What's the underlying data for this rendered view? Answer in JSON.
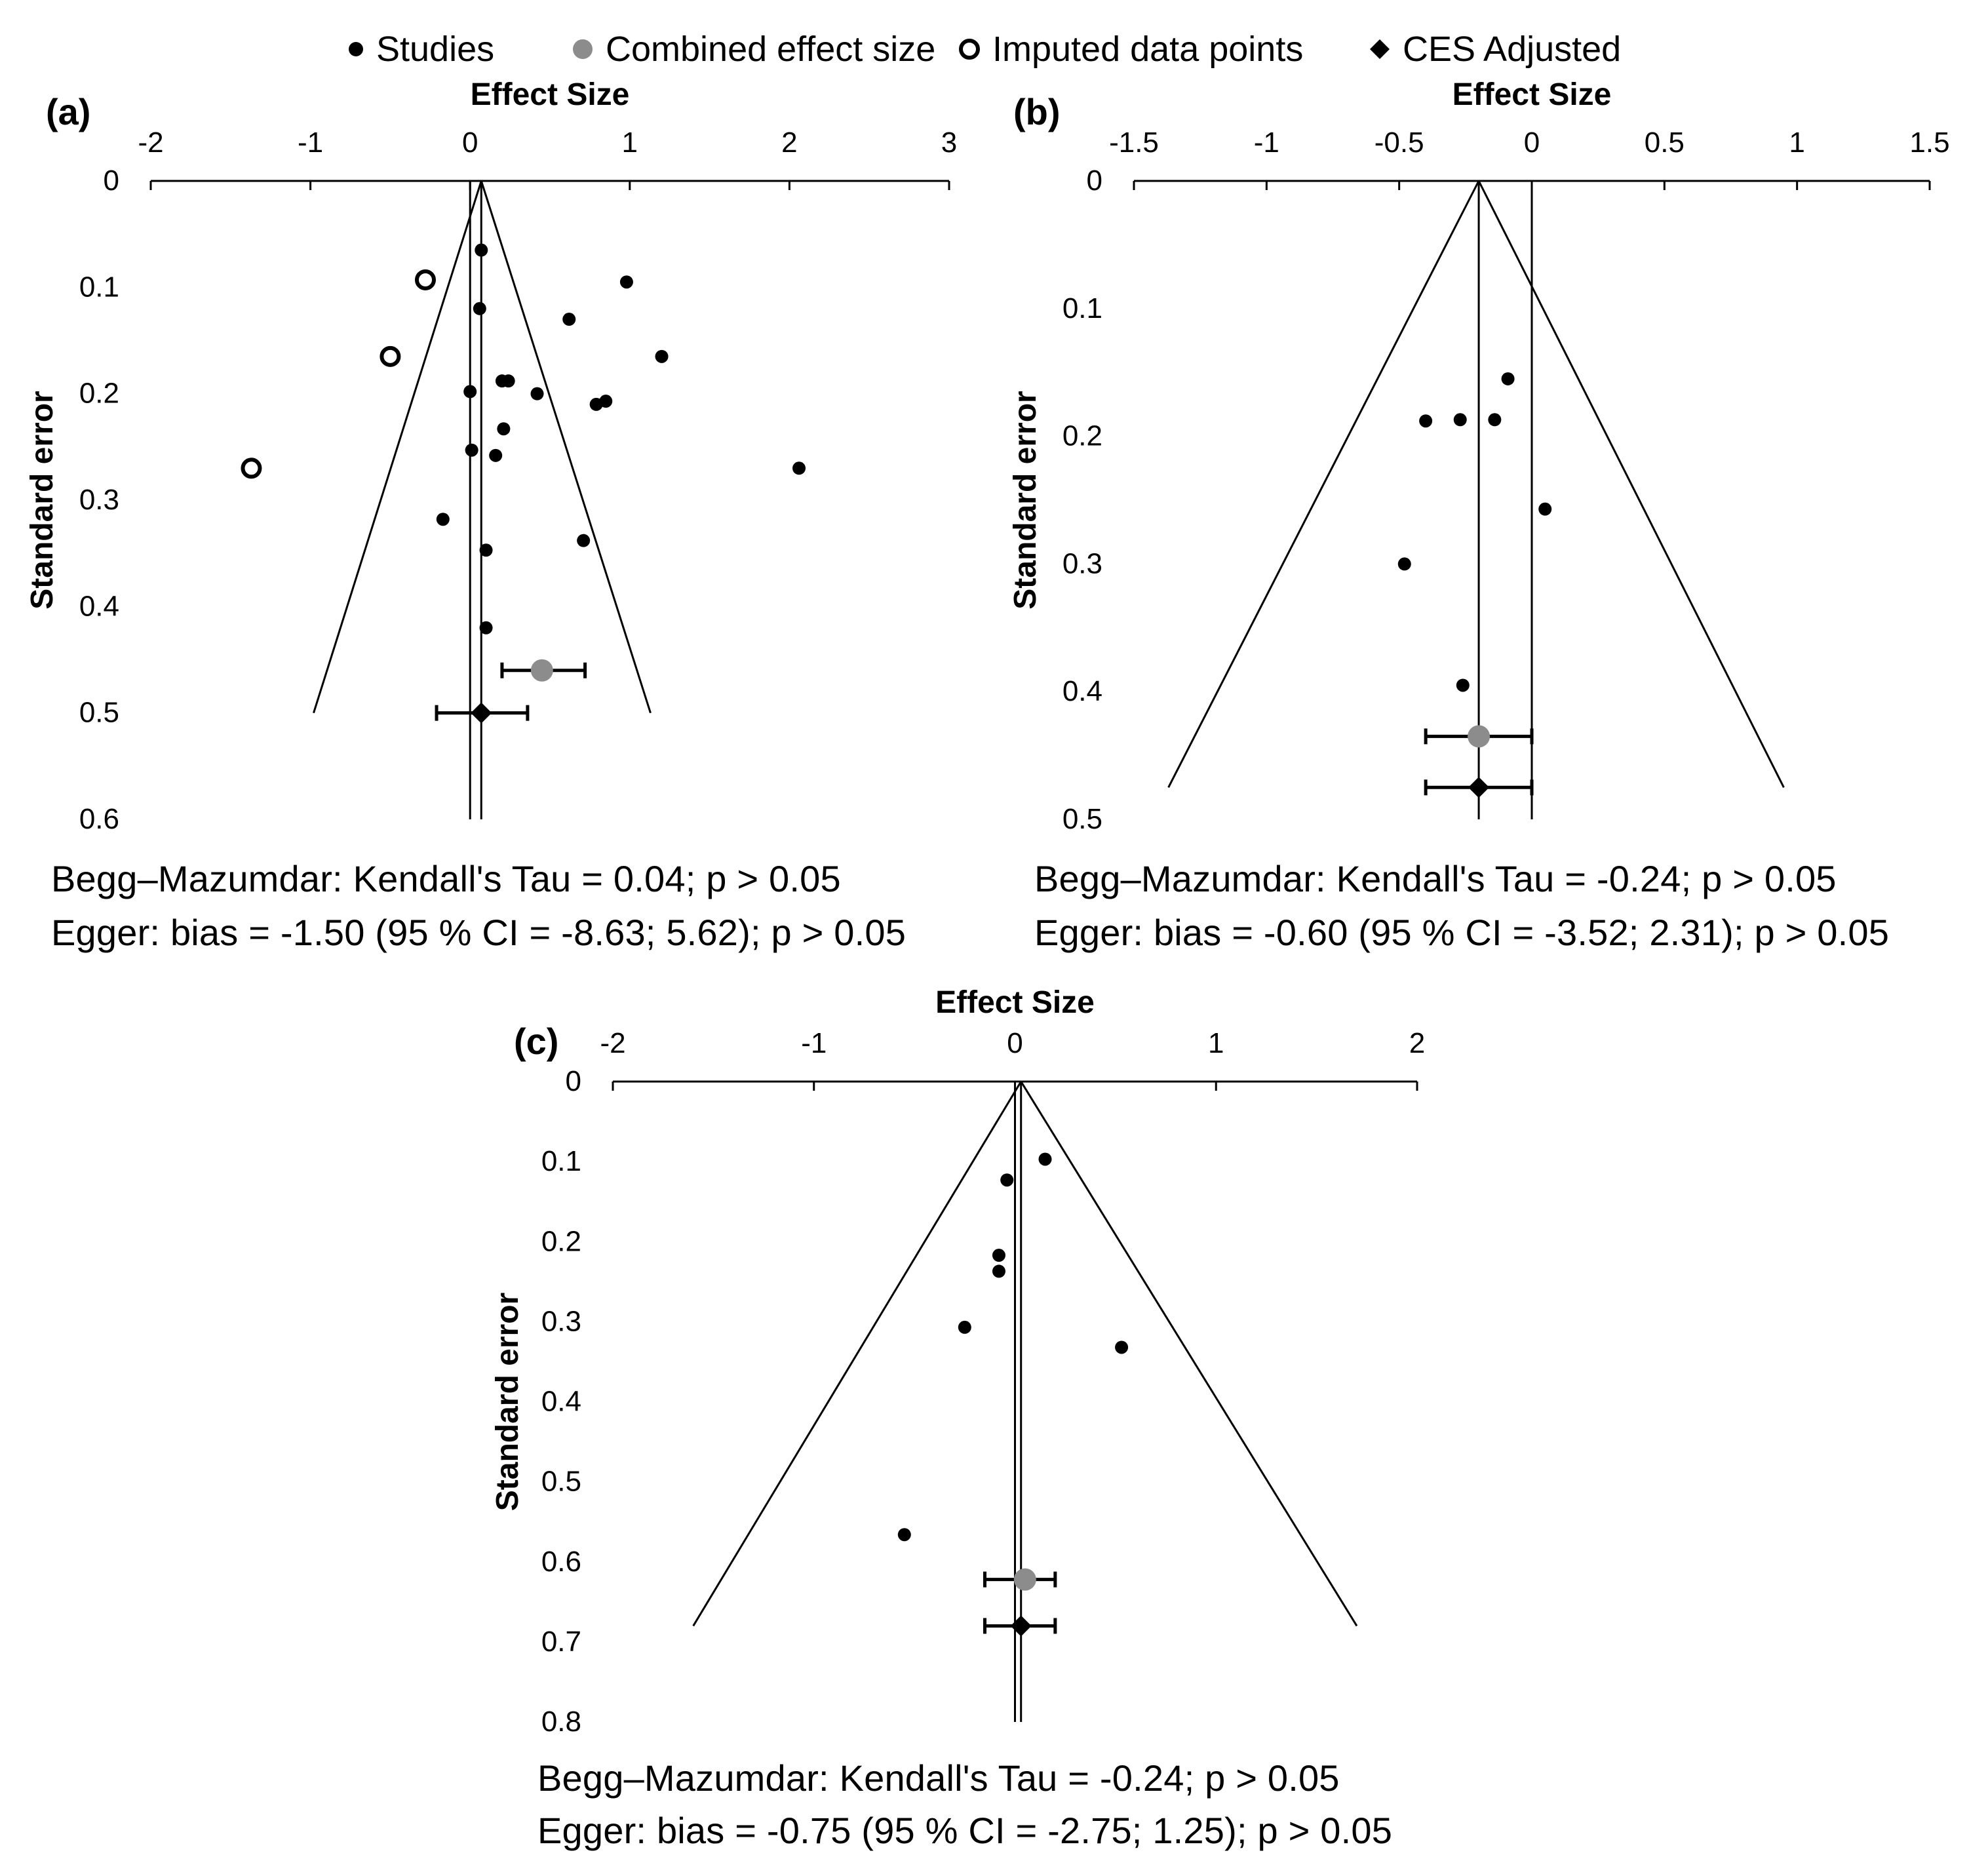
{
  "legend": [
    {
      "label": "Studies",
      "marker": "black-dot"
    },
    {
      "label": "Combined effect size",
      "marker": "grey-dot"
    },
    {
      "label": "Imputed data points",
      "marker": "open-circle"
    },
    {
      "label": "CES Adjusted",
      "marker": "black-diamond"
    }
  ],
  "colors": {
    "studies": "#000000",
    "combined": "#8c8c8c",
    "imputed_fill": "#ffffff",
    "adjusted": "#000000",
    "axis": "#000000"
  },
  "stats": {
    "a": {
      "begg": "Begg–Mazumdar:  Kendall's Tau = 0.04;  p > 0.05",
      "egger": "Egger: bias = -1.50 (95 % CI = -8.63; 5.62); p > 0.05"
    },
    "b": {
      "begg": "Begg–Mazumdar:  Kendall's Tau = -0.24;  p > 0.05",
      "egger": "Egger: bias = -0.60 (95 % CI = -3.52; 2.31); p > 0.05"
    },
    "c": {
      "begg": "Begg–Mazumdar:  Kendall's Tau = -0.24;  p > 0.05",
      "egger": "Egger: bias = -0.75 (95 % CI = -2.75; 1.25); p > 0.05"
    }
  },
  "chart_data": [
    {
      "id": "a",
      "panel_label": "(a)",
      "type": "scatter",
      "xlabel": "Effect Size",
      "ylabel": "Standard error",
      "xlim": [
        -2,
        3
      ],
      "ylim": [
        0,
        0.6
      ],
      "xticks": [
        -2,
        -1,
        0,
        1,
        2,
        3
      ],
      "yticks": [
        0,
        0.1,
        0.2,
        0.3,
        0.4,
        0.5,
        0.6
      ],
      "funnel": {
        "center": 0.07,
        "bottom_se": 0.5,
        "left": -0.98,
        "right": 1.13
      },
      "ref_x": 0,
      "center_line_x": 0.07,
      "studies": [
        {
          "x": 0.07,
          "y": 0.065
        },
        {
          "x": 0.98,
          "y": 0.095
        },
        {
          "x": 0.06,
          "y": 0.12
        },
        {
          "x": 0.62,
          "y": 0.13
        },
        {
          "x": 1.2,
          "y": 0.165
        },
        {
          "x": 0.2,
          "y": 0.188
        },
        {
          "x": 0.24,
          "y": 0.188
        },
        {
          "x": 0.0,
          "y": 0.198
        },
        {
          "x": 0.42,
          "y": 0.2
        },
        {
          "x": 0.85,
          "y": 0.207
        },
        {
          "x": 0.79,
          "y": 0.21
        },
        {
          "x": 0.21,
          "y": 0.233
        },
        {
          "x": 0.01,
          "y": 0.253
        },
        {
          "x": 0.16,
          "y": 0.258
        },
        {
          "x": 2.06,
          "y": 0.27
        },
        {
          "x": -0.17,
          "y": 0.318
        },
        {
          "x": 0.71,
          "y": 0.338
        },
        {
          "x": 0.1,
          "y": 0.347
        },
        {
          "x": 0.1,
          "y": 0.42
        }
      ],
      "imputed": [
        {
          "x": -0.28,
          "y": 0.093
        },
        {
          "x": -0.5,
          "y": 0.165
        },
        {
          "x": -1.37,
          "y": 0.27
        }
      ],
      "combined": {
        "x": 0.45,
        "y": 0.46,
        "lo": 0.2,
        "hi": 0.72
      },
      "adjusted": {
        "x": 0.07,
        "y": 0.5,
        "lo": -0.21,
        "hi": 0.36
      }
    },
    {
      "id": "b",
      "panel_label": "(b)",
      "type": "scatter",
      "xlabel": "Effect Size",
      "ylabel": "Standard error",
      "xlim": [
        -1.5,
        1.5
      ],
      "ylim": [
        0,
        0.5
      ],
      "xticks": [
        -1.5,
        -1,
        -0.5,
        0,
        0.5,
        1,
        1.5
      ],
      "yticks": [
        0,
        0.1,
        0.2,
        0.3,
        0.4,
        0.5
      ],
      "funnel": {
        "center": -0.2,
        "bottom_se": 0.475,
        "left": -1.37,
        "right": 0.95
      },
      "ref_x": 0,
      "center_line_x": -0.2,
      "studies": [
        {
          "x": -0.09,
          "y": 0.155
        },
        {
          "x": -0.4,
          "y": 0.188
        },
        {
          "x": -0.27,
          "y": 0.187
        },
        {
          "x": -0.14,
          "y": 0.187
        },
        {
          "x": 0.05,
          "y": 0.257
        },
        {
          "x": -0.48,
          "y": 0.3
        },
        {
          "x": -0.26,
          "y": 0.395
        }
      ],
      "imputed": [],
      "combined": {
        "x": -0.2,
        "y": 0.435,
        "lo": -0.4,
        "hi": 0.0
      },
      "adjusted": {
        "x": -0.2,
        "y": 0.475,
        "lo": -0.4,
        "hi": 0.0
      }
    },
    {
      "id": "c",
      "panel_label": "(c)",
      "type": "scatter",
      "xlabel": "Effect Size",
      "ylabel": "Standard error",
      "xlim": [
        -2,
        2
      ],
      "ylim": [
        0,
        0.8
      ],
      "xticks": [
        -2,
        -1,
        0,
        1,
        2
      ],
      "yticks": [
        0,
        0.1,
        0.2,
        0.3,
        0.4,
        0.5,
        0.6,
        0.7,
        0.8
      ],
      "funnel": {
        "center": 0.03,
        "bottom_se": 0.68,
        "left": -1.6,
        "right": 1.7
      },
      "ref_x": 0,
      "center_line_x": 0.03,
      "studies": [
        {
          "x": 0.15,
          "y": 0.097
        },
        {
          "x": -0.04,
          "y": 0.123
        },
        {
          "x": -0.08,
          "y": 0.217
        },
        {
          "x": -0.08,
          "y": 0.237
        },
        {
          "x": -0.25,
          "y": 0.307
        },
        {
          "x": 0.53,
          "y": 0.332
        },
        {
          "x": -0.55,
          "y": 0.566
        }
      ],
      "imputed": [],
      "combined": {
        "x": 0.05,
        "y": 0.622,
        "lo": -0.15,
        "hi": 0.2
      },
      "adjusted": {
        "x": 0.03,
        "y": 0.68,
        "lo": -0.15,
        "hi": 0.2
      }
    }
  ]
}
